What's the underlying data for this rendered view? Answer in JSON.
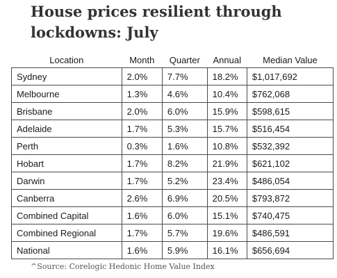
{
  "title": "House prices resilient through lockdowns: July",
  "table": {
    "headers": [
      "Location",
      "Month",
      "Quarter",
      "Annual",
      "Median Value"
    ],
    "rows": [
      [
        "Sydney",
        "2.0%",
        "7.7%",
        "18.2%",
        "$1,017,692"
      ],
      [
        "Melbourne",
        "1.3%",
        "4.6%",
        "10.4%",
        "$762,068"
      ],
      [
        "Brisbane",
        "2.0%",
        "6.0%",
        "15.9%",
        "$598,615"
      ],
      [
        "Adelaide",
        "1.7%",
        "5.3%",
        "15.7%",
        "$516,454"
      ],
      [
        "Perth",
        "0.3%",
        "1.6%",
        "10.8%",
        "$532,392"
      ],
      [
        "Hobart",
        "1.7%",
        "8.2%",
        "21.9%",
        "$621,102"
      ],
      [
        "Darwin",
        "1.7%",
        "5.2%",
        "23.4%",
        "$486,054"
      ],
      [
        "Canberra",
        "2.6%",
        "6.9%",
        "20.5%",
        "$793,872"
      ],
      [
        "Combined Capital",
        "1.6%",
        "6.0%",
        "15.1%",
        "$740,475"
      ],
      [
        "Combined Regional",
        "1.7%",
        "5.7%",
        "19.6%",
        "$486,591"
      ],
      [
        "National",
        "1.6%",
        "5.9%",
        "16.1%",
        "$656,694"
      ]
    ]
  },
  "source": "^Source: Corelogic Hedonic Home Value Index"
}
